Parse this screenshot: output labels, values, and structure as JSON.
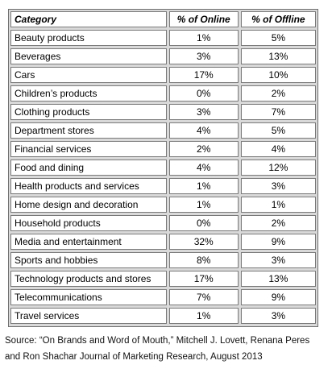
{
  "chart_data": {
    "type": "table",
    "columns": [
      "Category",
      "% of Online",
      "% of Offline"
    ],
    "rows": [
      [
        "Beauty products",
        "1%",
        "5%"
      ],
      [
        "Beverages",
        "3%",
        "13%"
      ],
      [
        "Cars",
        "17%",
        "10%"
      ],
      [
        "Children’s products",
        "0%",
        "2%"
      ],
      [
        "Clothing products",
        "3%",
        "7%"
      ],
      [
        "Department stores",
        "4%",
        "5%"
      ],
      [
        "Financial services",
        "2%",
        "4%"
      ],
      [
        "Food and dining",
        "4%",
        "12%"
      ],
      [
        "Health products and services",
        "1%",
        "3%"
      ],
      [
        "Home design and decoration",
        "1%",
        "1%"
      ],
      [
        "Household products",
        "0%",
        "2%"
      ],
      [
        "Media and entertainment",
        "32%",
        "9%"
      ],
      [
        "Sports and hobbies",
        "8%",
        "3%"
      ],
      [
        "Technology products and stores",
        "17%",
        "13%"
      ],
      [
        "Telecommunications",
        "7%",
        "9%"
      ],
      [
        "Travel services",
        "1%",
        "3%"
      ]
    ],
    "source_line1": "Source: “On Brands and Word of Mouth,” Mitchell J. Lovett, Renana Peres",
    "source_line2": "and Ron Shachar Journal of Marketing Research, August 2013"
  }
}
